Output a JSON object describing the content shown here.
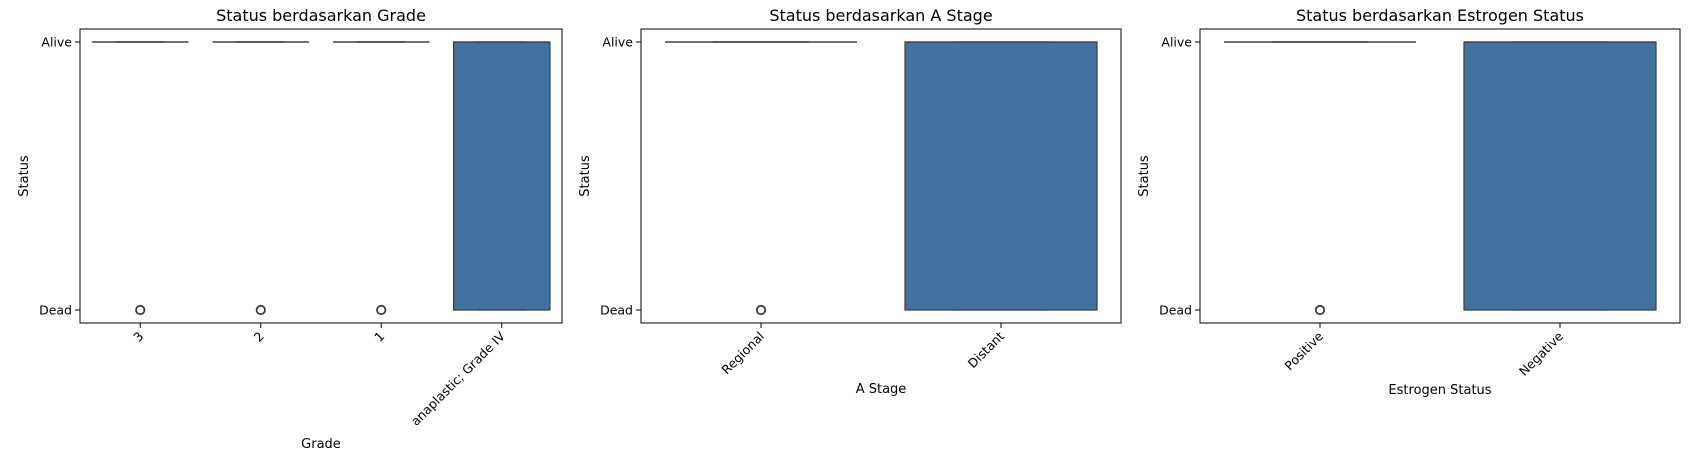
{
  "chart_data": [
    {
      "type": "box",
      "title": "Status berdasarkan Grade",
      "xlabel": "Grade",
      "ylabel": "Status",
      "y_categories": [
        "Dead",
        "Alive"
      ],
      "categories": [
        "3",
        "2",
        "1",
        "anaplastic; Grade IV"
      ],
      "box_color": "#4472a0",
      "boxes": [
        {
          "category": "3",
          "q1": "Alive",
          "median": "Alive",
          "q3": "Alive",
          "whisker_low": "Alive",
          "whisker_high": "Alive",
          "outliers": [
            "Dead"
          ]
        },
        {
          "category": "2",
          "q1": "Alive",
          "median": "Alive",
          "q3": "Alive",
          "whisker_low": "Alive",
          "whisker_high": "Alive",
          "outliers": [
            "Dead"
          ]
        },
        {
          "category": "1",
          "q1": "Alive",
          "median": "Alive",
          "q3": "Alive",
          "whisker_low": "Alive",
          "whisker_high": "Alive",
          "outliers": [
            "Dead"
          ]
        },
        {
          "category": "anaplastic; Grade IV",
          "q1": "Dead",
          "median": "Alive",
          "q3": "Alive",
          "whisker_low": "Dead",
          "whisker_high": "Alive",
          "outliers": []
        }
      ]
    },
    {
      "type": "box",
      "title": "Status berdasarkan A Stage",
      "xlabel": "A Stage",
      "ylabel": "Status",
      "y_categories": [
        "Dead",
        "Alive"
      ],
      "categories": [
        "Regional",
        "Distant"
      ],
      "box_color": "#4472a0",
      "boxes": [
        {
          "category": "Regional",
          "q1": "Alive",
          "median": "Alive",
          "q3": "Alive",
          "whisker_low": "Alive",
          "whisker_high": "Alive",
          "outliers": [
            "Dead"
          ]
        },
        {
          "category": "Distant",
          "q1": "Dead",
          "median": "Alive",
          "q3": "Alive",
          "whisker_low": "Dead",
          "whisker_high": "Alive",
          "outliers": []
        }
      ]
    },
    {
      "type": "box",
      "title": "Status berdasarkan Estrogen Status",
      "xlabel": "Estrogen Status",
      "ylabel": "Status",
      "y_categories": [
        "Dead",
        "Alive"
      ],
      "categories": [
        "Positive",
        "Negative"
      ],
      "box_color": "#4472a0",
      "boxes": [
        {
          "category": "Positive",
          "q1": "Alive",
          "median": "Alive",
          "q3": "Alive",
          "whisker_low": "Alive",
          "whisker_high": "Alive",
          "outliers": [
            "Dead"
          ]
        },
        {
          "category": "Negative",
          "q1": "Dead",
          "median": "Alive",
          "q3": "Alive",
          "whisker_low": "Dead",
          "whisker_high": "Alive",
          "outliers": []
        }
      ]
    }
  ]
}
